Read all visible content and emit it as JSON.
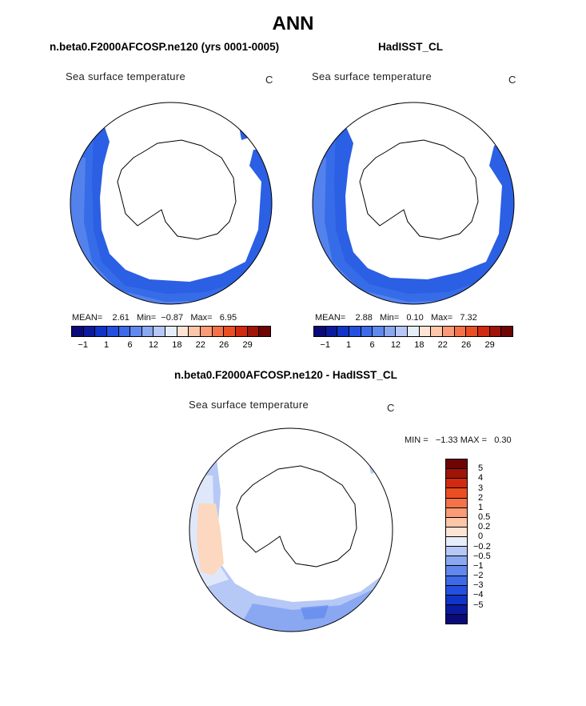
{
  "title": "ANN",
  "panels": [
    {
      "subtitle": "n.beta0.F2000AFCOSP.ne120 (yrs 0001-0005)",
      "field": "Sea surface temperature",
      "units": "C",
      "mean_label": "MEAN=",
      "mean": "2.61",
      "min_label": "Min=",
      "min": "−0.87",
      "max_label": "Max=",
      "max": "6.95"
    },
    {
      "subtitle": "HadISST_CL",
      "field": "Sea surface temperature",
      "units": "C",
      "mean_label": "MEAN=",
      "mean": "2.88",
      "min_label": "Min=",
      "min": "0.10",
      "max_label": "Max=",
      "max": "7.32"
    }
  ],
  "diff_panel": {
    "subtitle": "n.beta0.F2000AFCOSP.ne120 - HadISST_CL",
    "field": "Sea surface temperature",
    "units": "C",
    "min_label": "MIN =",
    "min": "−1.33",
    "max_label": "MAX =",
    "max": "0.30"
  },
  "abs_colorbar": {
    "colors": [
      "#0a0a7a",
      "#0c1aa0",
      "#1034c8",
      "#2450e0",
      "#3c6ae8",
      "#6088ee",
      "#8aa8f2",
      "#b6c8f6",
      "#e6eefa",
      "#fde4d4",
      "#fcc6a8",
      "#fa9a76",
      "#f47248",
      "#ec4e24",
      "#d22a10",
      "#a01408",
      "#6e0404"
    ],
    "ticks": [
      "−1",
      "1",
      "6",
      "12",
      "18",
      "22",
      "26",
      "29"
    ]
  },
  "diff_colorbar": {
    "colors": [
      "#6e0404",
      "#a01408",
      "#d22a10",
      "#ec4e24",
      "#f47248",
      "#fa9a76",
      "#fcc6a8",
      "#fde4d4",
      "#e6eefa",
      "#b6c8f6",
      "#8aa8f2",
      "#6088ee",
      "#3c6ae8",
      "#2450e0",
      "#1034c8",
      "#0c1aa0",
      "#0a0a7a"
    ],
    "ticks": [
      "5",
      "4",
      "3",
      "2",
      "1",
      "0.5",
      "0.2",
      "0",
      "−0.2",
      "−0.5",
      "−1",
      "−2",
      "−3",
      "−4",
      "−5"
    ]
  }
}
